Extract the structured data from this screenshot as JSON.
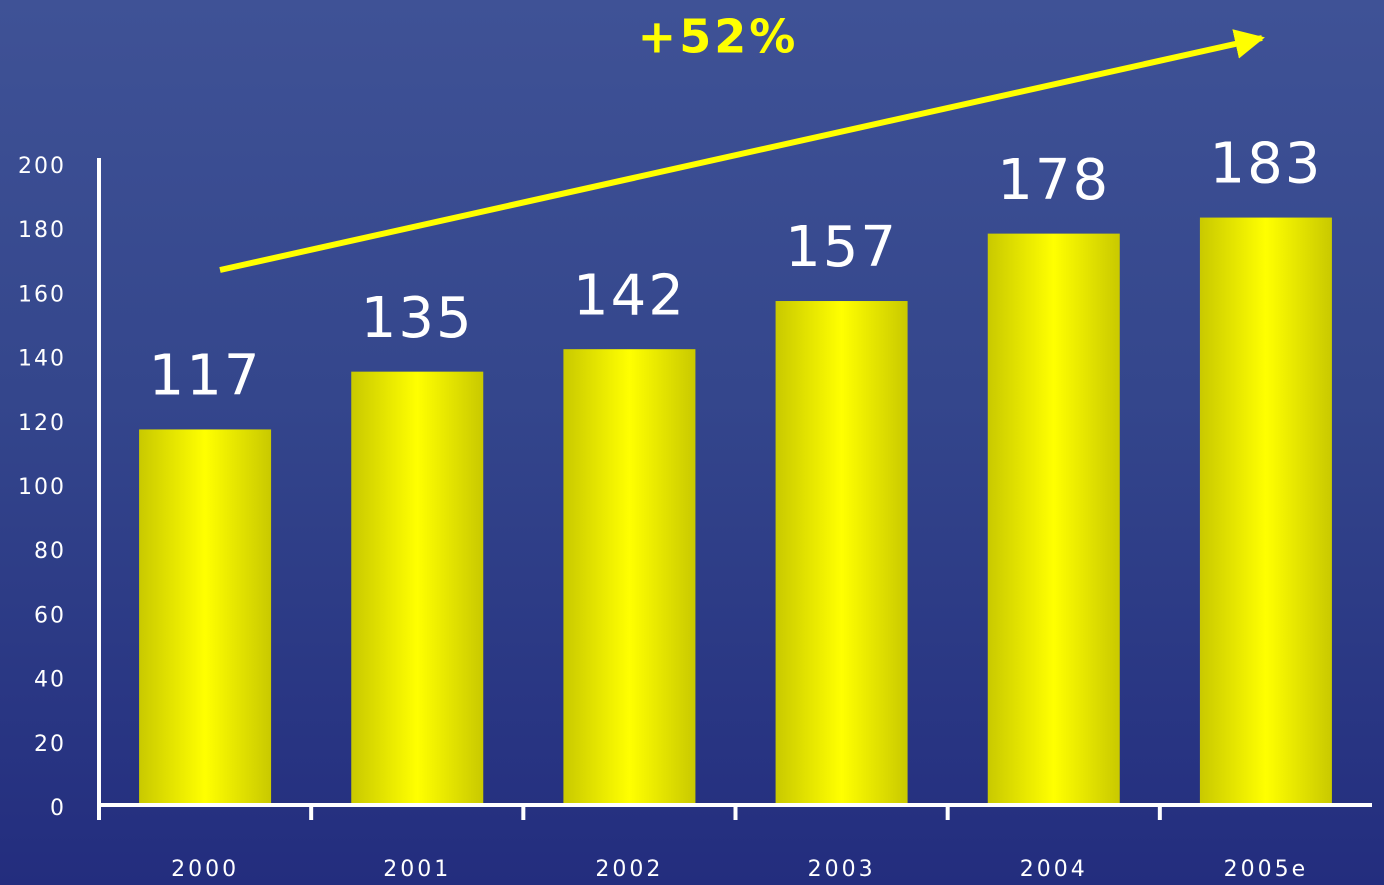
{
  "chart_data": {
    "type": "bar",
    "annotation": "+52%",
    "categories": [
      "2000",
      "2001",
      "2002",
      "2003",
      "2004",
      "2005e"
    ],
    "values": [
      117,
      135,
      142,
      157,
      178,
      183
    ],
    "color": "#ffff00",
    "ylim": [
      0,
      200
    ],
    "yticks": [
      0,
      20,
      40,
      60,
      80,
      100,
      120,
      140,
      160,
      180,
      200
    ],
    "grid": false
  }
}
